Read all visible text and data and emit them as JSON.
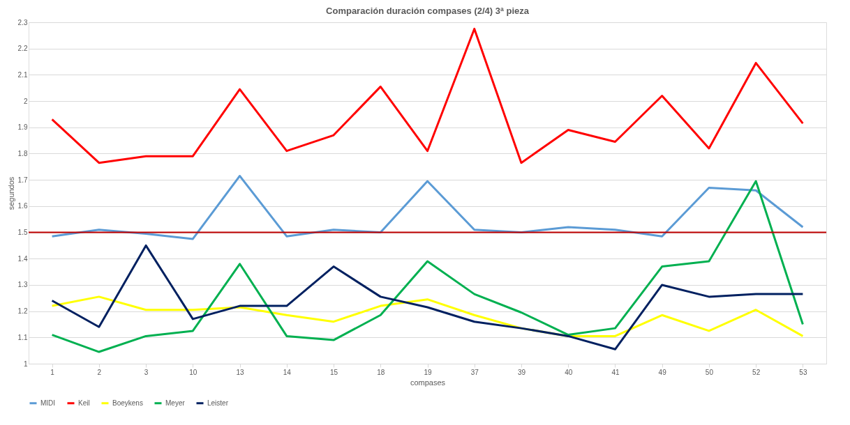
{
  "chart_data": {
    "type": "line",
    "title": "Comparación duración compases (2/4) 3ª pieza",
    "xlabel": "compases",
    "ylabel": "segundos",
    "categories": [
      "1",
      "2",
      "3",
      "10",
      "13",
      "14",
      "15",
      "18",
      "19",
      "37",
      "39",
      "40",
      "41",
      "49",
      "50",
      "52",
      "53"
    ],
    "series": [
      {
        "name": "MIDI",
        "color": "#5b9bd5",
        "values": [
          1.485,
          1.51,
          1.495,
          1.475,
          1.715,
          1.485,
          1.51,
          1.5,
          1.695,
          1.51,
          1.5,
          1.52,
          1.51,
          1.485,
          1.67,
          1.66,
          1.52
        ]
      },
      {
        "name": "Keil",
        "color": "#ff0000",
        "values": [
          1.93,
          1.765,
          1.79,
          1.79,
          2.045,
          1.81,
          1.87,
          2.055,
          1.81,
          2.275,
          1.765,
          1.89,
          1.845,
          2.02,
          1.82,
          2.145,
          1.915
        ]
      },
      {
        "name": "Boeykens",
        "color": "#ffff00",
        "values": [
          1.22,
          1.255,
          1.205,
          1.205,
          1.215,
          1.185,
          1.16,
          1.22,
          1.245,
          1.185,
          1.135,
          1.105,
          1.105,
          1.185,
          1.125,
          1.205,
          1.105
        ]
      },
      {
        "name": "Meyer",
        "color": "#00b050",
        "values": [
          1.11,
          1.045,
          1.105,
          1.125,
          1.38,
          1.105,
          1.09,
          1.185,
          1.39,
          1.265,
          1.195,
          1.11,
          1.135,
          1.37,
          1.39,
          1.695,
          1.15
        ]
      },
      {
        "name": "Leister",
        "color": "#002060",
        "values": [
          1.24,
          1.14,
          1.45,
          1.17,
          1.22,
          1.22,
          1.37,
          1.255,
          1.215,
          1.16,
          1.135,
          1.105,
          1.055,
          1.3,
          1.255,
          1.265,
          1.265
        ]
      }
    ],
    "ylim": [
      1,
      2.3
    ],
    "yticks": [
      1,
      1.1,
      1.2,
      1.3,
      1.4,
      1.5,
      1.6,
      1.7,
      1.8,
      1.9,
      2,
      2.1,
      2.2,
      2.3
    ],
    "ref_lines": [
      {
        "axis": "y",
        "value": 1.5,
        "color": "#c00000"
      }
    ],
    "grid": "y",
    "legend": "bottom",
    "marker": "none",
    "line_style": "solid"
  }
}
